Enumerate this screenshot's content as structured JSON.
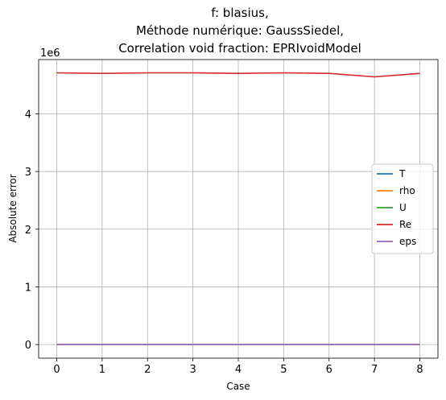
{
  "chart_data": {
    "type": "line",
    "title_lines": [
      "f: blasius,",
      "Méthode numérique: GaussSiedel,",
      "Correlation void fraction: EPRIvoidModel"
    ],
    "xlabel": "Case",
    "ylabel": "Absolute error",
    "y_offset_label": "1e6",
    "x": [
      0,
      1,
      2,
      3,
      4,
      5,
      6,
      7,
      8
    ],
    "xlim": [
      -0.4,
      8.4
    ],
    "ylim": [
      -0.235,
      4.94
    ],
    "y_multiplier": 1000000,
    "x_ticks": [
      0,
      1,
      2,
      3,
      4,
      5,
      6,
      7,
      8
    ],
    "y_ticks": [
      0,
      1,
      2,
      3,
      4
    ],
    "grid": true,
    "legend_position": "center-right",
    "series": [
      {
        "name": "T",
        "color": "#1f77b4",
        "values": [
          0,
          0,
          0,
          0,
          0,
          0,
          0,
          0,
          0
        ]
      },
      {
        "name": "rho",
        "color": "#ff7f0e",
        "values": [
          0,
          0,
          0,
          0,
          0,
          0,
          0,
          0,
          0
        ]
      },
      {
        "name": "U",
        "color": "#2ca02c",
        "values": [
          0,
          0,
          0,
          0,
          0,
          0,
          0,
          0,
          0
        ]
      },
      {
        "name": "Re",
        "color": "#d62728",
        "values": [
          4.71,
          4.7,
          4.71,
          4.71,
          4.7,
          4.71,
          4.7,
          4.64,
          4.7
        ]
      },
      {
        "name": "eps",
        "color": "#9467bd",
        "values": [
          0,
          0,
          0,
          0,
          0,
          0,
          0,
          0,
          0
        ]
      }
    ]
  }
}
